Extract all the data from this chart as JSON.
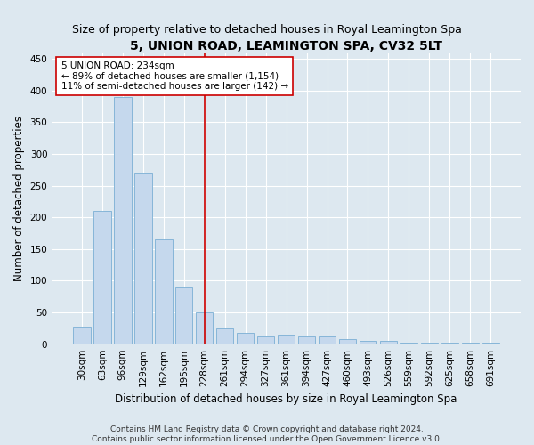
{
  "title": "5, UNION ROAD, LEAMINGTON SPA, CV32 5LT",
  "subtitle": "Size of property relative to detached houses in Royal Leamington Spa",
  "xlabel": "Distribution of detached houses by size in Royal Leamington Spa",
  "ylabel": "Number of detached properties",
  "footer_line1": "Contains HM Land Registry data © Crown copyright and database right 2024.",
  "footer_line2": "Contains public sector information licensed under the Open Government Licence v3.0.",
  "bins": [
    "30sqm",
    "63sqm",
    "96sqm",
    "129sqm",
    "162sqm",
    "195sqm",
    "228sqm",
    "261sqm",
    "294sqm",
    "327sqm",
    "361sqm",
    "394sqm",
    "427sqm",
    "460sqm",
    "493sqm",
    "526sqm",
    "559sqm",
    "592sqm",
    "625sqm",
    "658sqm",
    "691sqm"
  ],
  "values": [
    28,
    210,
    390,
    270,
    165,
    90,
    50,
    25,
    18,
    12,
    15,
    12,
    12,
    8,
    5,
    5,
    2,
    2,
    3,
    2,
    3
  ],
  "bar_color": "#c5d8ed",
  "bar_edge_color": "#7aafd4",
  "bar_width": 0.85,
  "vline_x_index": 6,
  "vline_color": "#cc0000",
  "annotation_line1": "5 UNION ROAD: 234sqm",
  "annotation_line2": "← 89% of detached houses are smaller (1,154)",
  "annotation_line3": "11% of semi-detached houses are larger (142) →",
  "annotation_box_color": "#ffffff",
  "annotation_box_edge": "#cc0000",
  "ylim": [
    0,
    460
  ],
  "title_fontsize": 10,
  "subtitle_fontsize": 9,
  "xlabel_fontsize": 8.5,
  "ylabel_fontsize": 8.5,
  "tick_fontsize": 7.5,
  "annotation_fontsize": 7.5,
  "footer_fontsize": 6.5,
  "bg_color": "#dde8f0",
  "plot_bg_color": "#dde8f0"
}
